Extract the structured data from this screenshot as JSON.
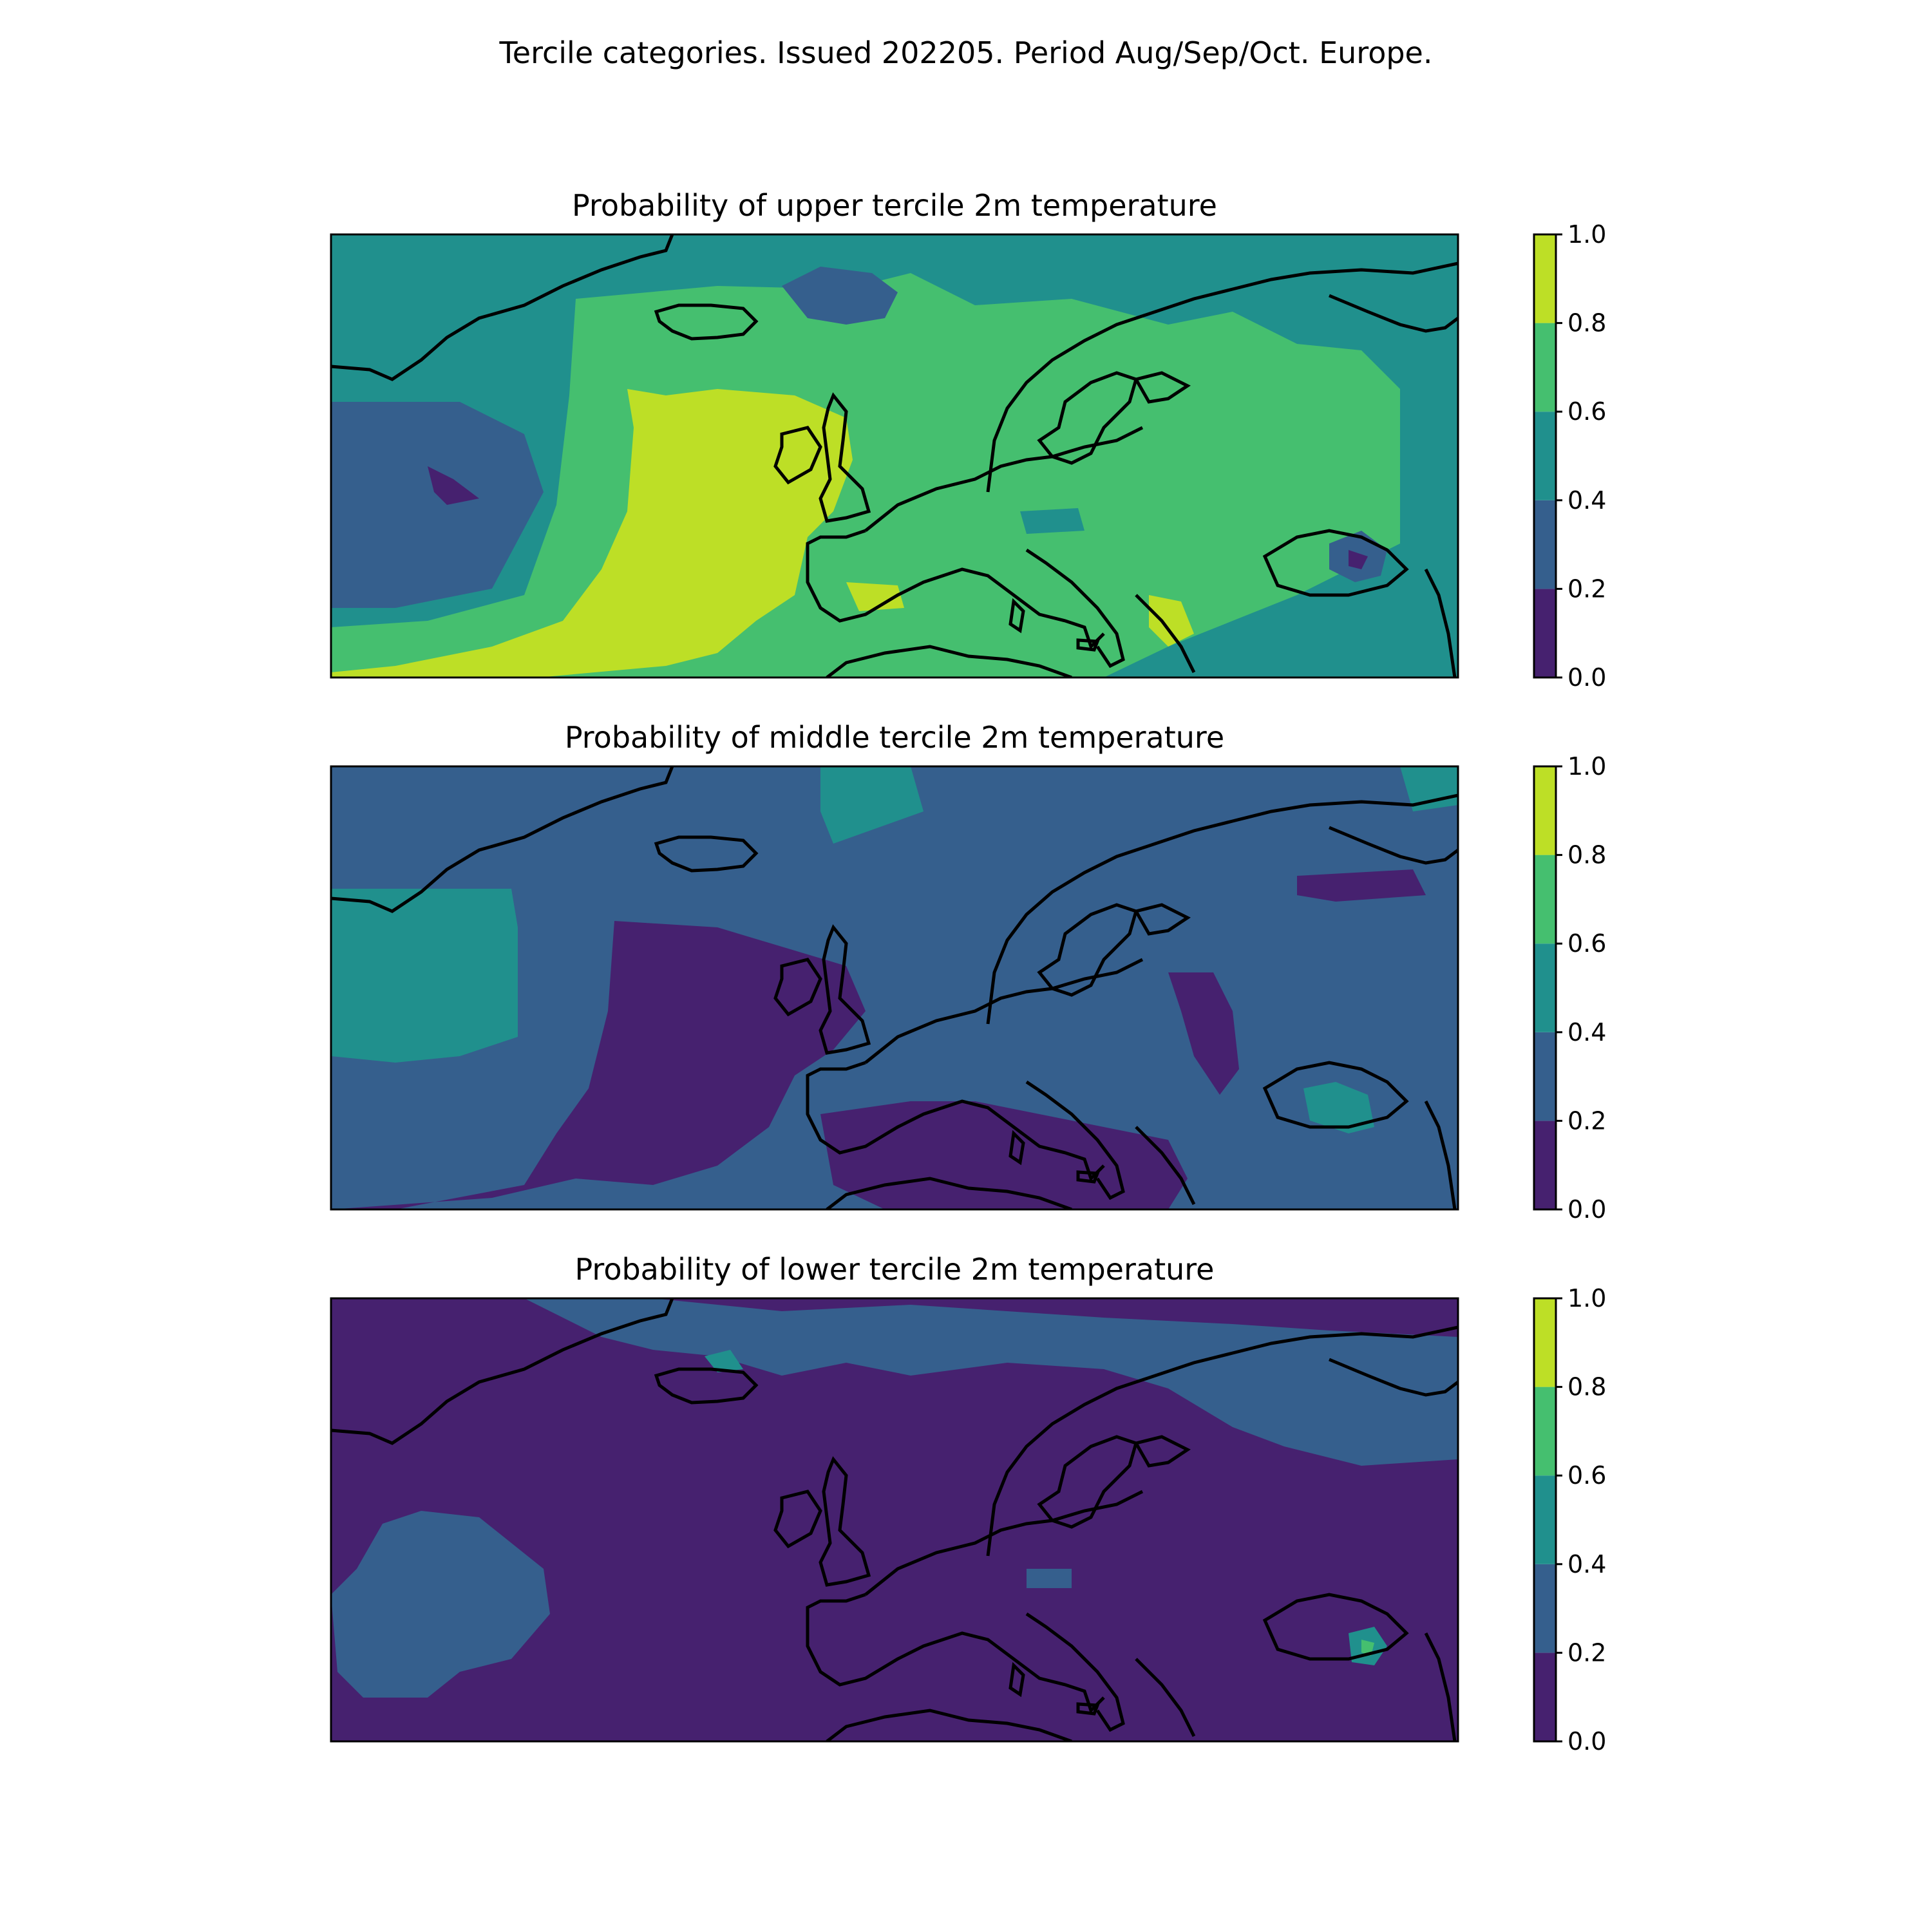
{
  "figure_title": "Tercile categories. Issued 202205. Period Aug/Sep/Oct. Europe.",
  "colorbar": {
    "ticks": [
      "0.0",
      "0.2",
      "0.4",
      "0.6",
      "0.8",
      "1.0"
    ],
    "levels": [
      {
        "range": [
          0.0,
          0.2
        ],
        "color": "#46216f"
      },
      {
        "range": [
          0.2,
          0.4
        ],
        "color": "#355f8d"
      },
      {
        "range": [
          0.4,
          0.6
        ],
        "color": "#20908d"
      },
      {
        "range": [
          0.6,
          0.8
        ],
        "color": "#45bf6f"
      },
      {
        "range": [
          0.8,
          1.0
        ],
        "color": "#bddf26"
      }
    ]
  },
  "panels": [
    {
      "title": "Probability of upper tercile 2m temperature",
      "dominant_level": 0.5
    },
    {
      "title": "Probability of middle tercile 2m temperature",
      "dominant_level": 0.3
    },
    {
      "title": "Probability of lower tercile 2m temperature",
      "dominant_level": 0.1
    }
  ]
}
